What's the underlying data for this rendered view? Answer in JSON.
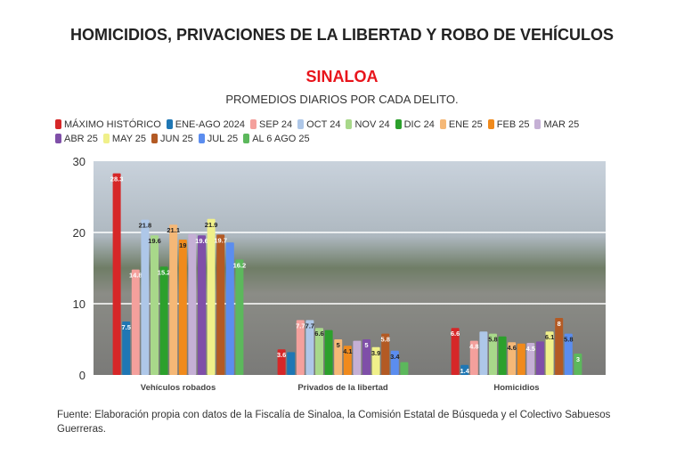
{
  "title": "HOMICIDIOS, PRIVACIONES DE LA LIBERTAD Y ROBO DE VEHÍCULOS",
  "region": "SINALOA",
  "subtitle": "PROMEDIOS DIARIOS POR CADA DELITO.",
  "source": "Fuente: Elaboración propia con datos de la Fiscalía de Sinaloa, la Comisión Estatal de Búsqueda y el Colectivo Sabuesos Guerreras.",
  "chart_data": {
    "type": "bar",
    "categories": [
      "Vehículos robados",
      "Privados de la libertad",
      "Homicidios"
    ],
    "ylim": [
      0,
      30
    ],
    "yticks": [
      0,
      10,
      20,
      30
    ],
    "grid": true,
    "legend_position": "top",
    "series": [
      {
        "name": "MÁXIMO HISTÓRICO",
        "color": "#d62728",
        "values": [
          28.3,
          3.6,
          6.6
        ],
        "labels": [
          "28.3",
          "3.6",
          "6.6"
        ]
      },
      {
        "name": "ENE-AGO 2024",
        "color": "#1f77b4",
        "values": [
          7.5,
          3.2,
          1.4
        ],
        "labels": [
          "7.5",
          null,
          "1.4"
        ]
      },
      {
        "name": "SEP 24",
        "color": "#f4a09c",
        "values": [
          14.8,
          7.7,
          4.8
        ],
        "labels": [
          "14.8",
          "7.7",
          "4.8"
        ]
      },
      {
        "name": "OCT 24",
        "color": "#aec7e8",
        "values": [
          21.8,
          7.7,
          6.1
        ],
        "labels": [
          "21.8",
          "7.7",
          null
        ]
      },
      {
        "name": "NOV 24",
        "color": "#a8d88a",
        "values": [
          19.6,
          6.6,
          5.8
        ],
        "labels": [
          "19.6",
          "6.6",
          "5.8"
        ]
      },
      {
        "name": "DIC 24",
        "color": "#2ca02c",
        "values": [
          15.2,
          6.3,
          5.4
        ],
        "labels": [
          "15.2",
          null,
          null
        ]
      },
      {
        "name": "ENE 25",
        "color": "#f5b877",
        "values": [
          21.1,
          5,
          4.6
        ],
        "labels": [
          "21.1",
          "5",
          "4.6"
        ]
      },
      {
        "name": "FEB 25",
        "color": "#f08a1c",
        "values": [
          19,
          4.1,
          4.4
        ],
        "labels": [
          "19",
          "4.1",
          null
        ]
      },
      {
        "name": "MAR 25",
        "color": "#c5b0d5",
        "values": [
          19.8,
          4.8,
          4.5
        ],
        "labels": [
          null,
          null,
          "4.5"
        ]
      },
      {
        "name": "ABR 25",
        "color": "#7f4fa8",
        "values": [
          19.6,
          5,
          4.7
        ],
        "labels": [
          "19.6",
          "5",
          null
        ]
      },
      {
        "name": "MAY 25",
        "color": "#f0f08a",
        "values": [
          21.9,
          3.9,
          6.1
        ],
        "labels": [
          "21.9",
          "3.9",
          "6.1"
        ]
      },
      {
        "name": "JUN 25",
        "color": "#b35a24",
        "values": [
          19.7,
          5.8,
          8
        ],
        "labels": [
          "19.7",
          "5.8",
          "8"
        ]
      },
      {
        "name": "JUL 25",
        "color": "#5b8def",
        "values": [
          18.6,
          3.4,
          5.8
        ],
        "labels": [
          null,
          "3.4",
          "5.8"
        ]
      },
      {
        "name": "AL 6 AGO 25",
        "color": "#5cb85c",
        "values": [
          16.2,
          1.8,
          3
        ],
        "labels": [
          "16.2",
          null,
          "3"
        ]
      }
    ]
  }
}
